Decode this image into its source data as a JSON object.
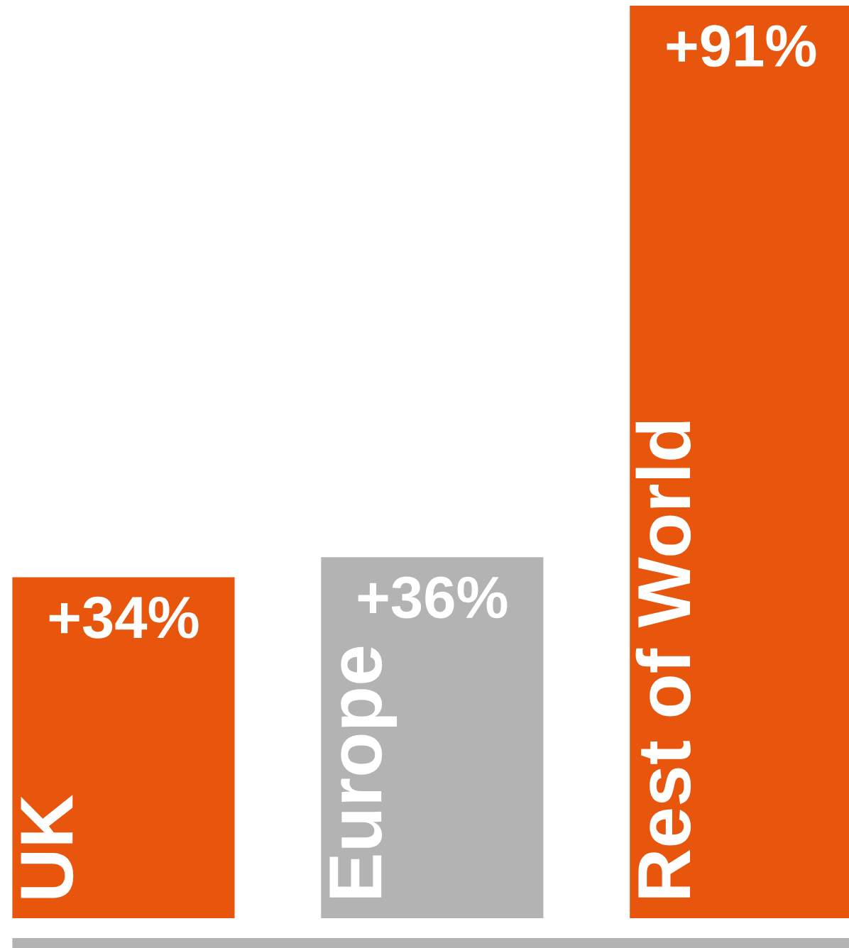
{
  "chart_data": {
    "type": "bar",
    "categories": [
      "UK",
      "Europe",
      "Rest of World"
    ],
    "values": [
      34,
      36,
      91
    ],
    "colors": [
      "#e8560e",
      "#b3b3b3",
      "#e8560e"
    ],
    "value_labels": [
      "+34%",
      "+36%",
      "+91%"
    ]
  }
}
